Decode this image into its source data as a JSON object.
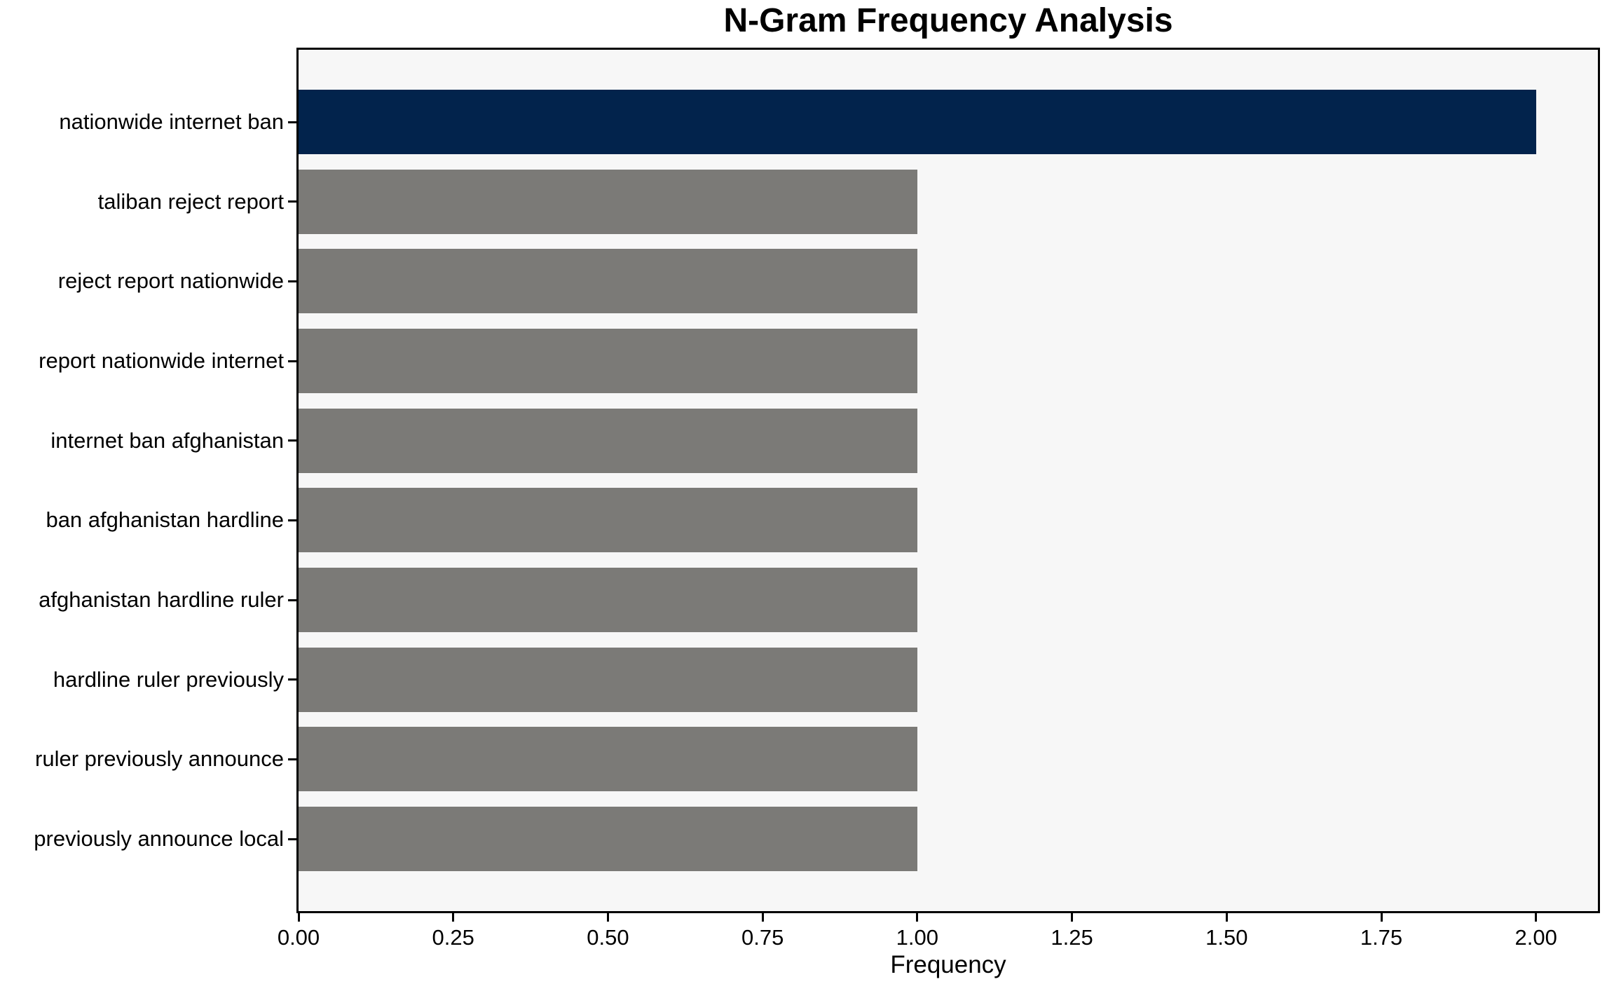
{
  "chart_data": {
    "type": "bar",
    "orientation": "horizontal",
    "title": "N-Gram Frequency Analysis",
    "xlabel": "Frequency",
    "ylabel": "",
    "categories": [
      "nationwide internet ban",
      "taliban reject report",
      "reject report nationwide",
      "report nationwide internet",
      "internet ban afghanistan",
      "ban afghanistan hardline",
      "afghanistan hardline ruler",
      "hardline ruler previously",
      "ruler previously announce",
      "previously announce local"
    ],
    "values": [
      2,
      1,
      1,
      1,
      1,
      1,
      1,
      1,
      1,
      1
    ],
    "xlim": [
      0,
      2.1
    ],
    "xticks": [
      0,
      0.25,
      0.5,
      0.75,
      1.0,
      1.25,
      1.5,
      1.75,
      2.0
    ],
    "xtick_labels": [
      "0.00",
      "0.25",
      "0.50",
      "0.75",
      "1.00",
      "1.25",
      "1.50",
      "1.75",
      "2.00"
    ],
    "grid": false,
    "legend": false,
    "highlight_index": 0,
    "colors": {
      "highlight_bar": "#02234c",
      "default_bar": "#7b7a77",
      "plot_background": "#f7f7f7",
      "axis": "#000000",
      "text": "#000000"
    }
  }
}
